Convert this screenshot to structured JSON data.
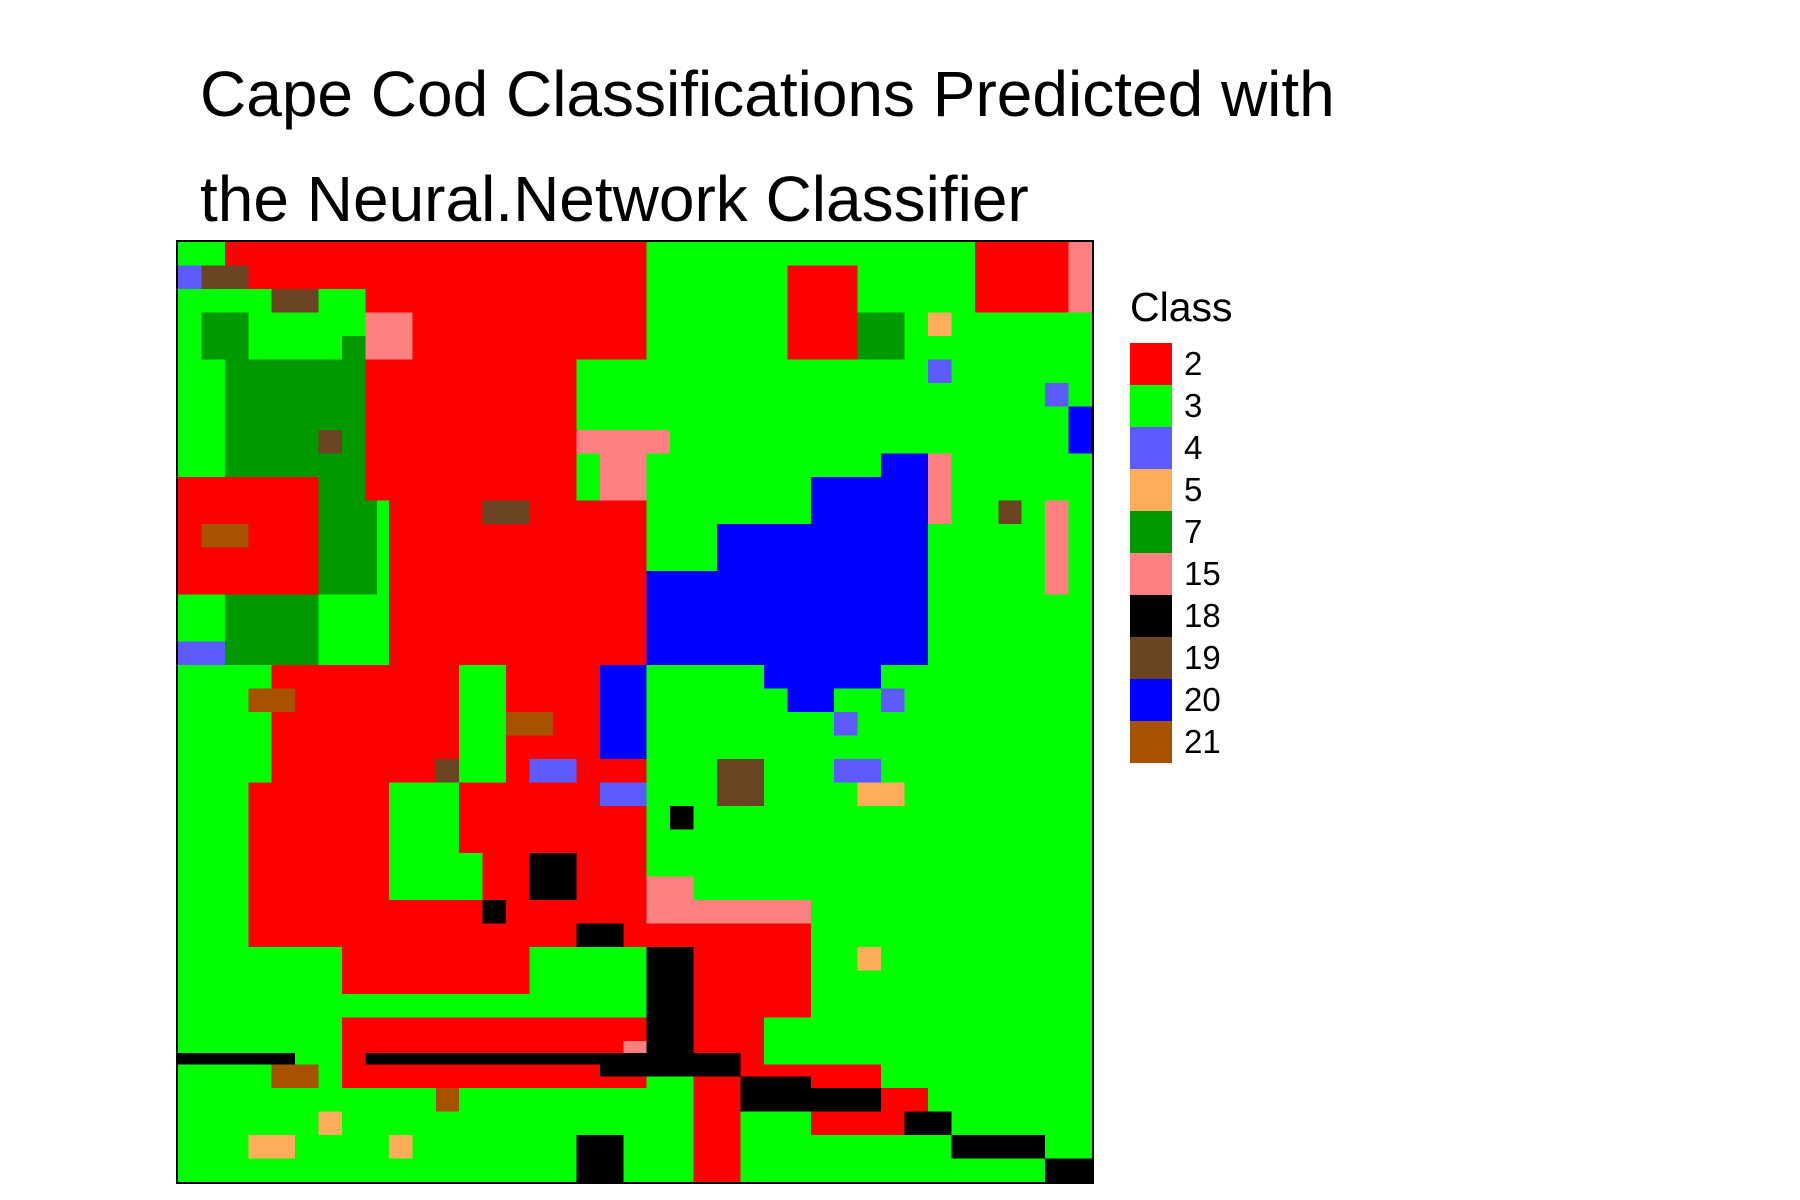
{
  "chart_data": {
    "type": "heatmap",
    "title_lines": [
      "Cape Cod Classifications Predicted with",
      "the Neural.Network Classifier"
    ],
    "legend": {
      "title": "Class",
      "placement": "right",
      "entries": [
        {
          "label": "2",
          "color": "#ff0000"
        },
        {
          "label": "3",
          "color": "#00ff00"
        },
        {
          "label": "4",
          "color": "#5b5bff"
        },
        {
          "label": "5",
          "color": "#ffad5b"
        },
        {
          "label": "7",
          "color": "#009900"
        },
        {
          "label": "15",
          "color": "#ff8080"
        },
        {
          "label": "18",
          "color": "#000000"
        },
        {
          "label": "19",
          "color": "#6b4423"
        },
        {
          "label": "20",
          "color": "#0000ff"
        },
        {
          "label": "21",
          "color": "#a65200"
        }
      ]
    },
    "grid": {
      "cols": 78,
      "rows": 80,
      "background_class": "3",
      "regions": [
        {
          "class": "7",
          "cells": [
            [
              4,
              10,
              17,
              30
            ],
            [
              2,
              6,
              6,
              10
            ],
            [
              20,
              8,
              30,
              14
            ],
            [
              4,
              30,
              12,
              36
            ],
            [
              58,
              6,
              62,
              10
            ],
            [
              14,
              8,
              20,
              12
            ]
          ]
        },
        {
          "class": "2",
          "cells": [
            [
              4,
              0,
              40,
              4
            ],
            [
              16,
              4,
              40,
              10
            ],
            [
              16,
              10,
              34,
              22
            ],
            [
              0,
              20,
              12,
              30
            ],
            [
              18,
              22,
              40,
              36
            ],
            [
              28,
              36,
              40,
              46
            ],
            [
              8,
              36,
              24,
              46
            ],
            [
              6,
              46,
              18,
              60
            ],
            [
              14,
              56,
              30,
              64
            ],
            [
              24,
              46,
              40,
              52
            ],
            [
              26,
              52,
              40,
              60
            ],
            [
              40,
              58,
              44,
              68
            ],
            [
              44,
              56,
              50,
              72
            ],
            [
              50,
              56,
              54,
              66
            ],
            [
              14,
              66,
              40,
              72
            ],
            [
              44,
              70,
              48,
              80
            ],
            [
              48,
              70,
              60,
              74
            ],
            [
              54,
              72,
              64,
              76
            ],
            [
              68,
              0,
              76,
              6
            ],
            [
              52,
              2,
              58,
              10
            ],
            [
              36,
              26,
              40,
              36
            ],
            [
              32,
              40,
              40,
              48
            ]
          ]
        },
        {
          "class": "15",
          "cells": [
            [
              16,
              6,
              20,
              10
            ],
            [
              34,
              16,
              42,
              18
            ],
            [
              36,
              18,
              40,
              22
            ],
            [
              40,
              54,
              44,
              58
            ],
            [
              44,
              56,
              54,
              58
            ],
            [
              76,
              0,
              78,
              6
            ],
            [
              64,
              18,
              66,
              24
            ],
            [
              38,
              68,
              42,
              70
            ],
            [
              74,
              22,
              76,
              30
            ]
          ]
        },
        {
          "class": "20",
          "cells": [
            [
              40,
              28,
              64,
              36
            ],
            [
              46,
              24,
              64,
              28
            ],
            [
              54,
              20,
              64,
              24
            ],
            [
              60,
              18,
              64,
              20
            ],
            [
              50,
              36,
              60,
              38
            ],
            [
              52,
              38,
              56,
              40
            ],
            [
              36,
              36,
              40,
              44
            ],
            [
              76,
              14,
              78,
              18
            ]
          ]
        },
        {
          "class": "18",
          "cells": [
            [
              0,
              69,
              10,
              70
            ],
            [
              16,
              69,
              36,
              70
            ],
            [
              36,
              69,
              48,
              71
            ],
            [
              40,
              60,
              44,
              70
            ],
            [
              48,
              71,
              54,
              72
            ],
            [
              48,
              72,
              60,
              74
            ],
            [
              62,
              74,
              66,
              76
            ],
            [
              66,
              76,
              74,
              78
            ],
            [
              74,
              78,
              78,
              80
            ],
            [
              34,
              76,
              38,
              80
            ],
            [
              34,
              58,
              38,
              60
            ],
            [
              30,
              52,
              34,
              56
            ],
            [
              42,
              48,
              44,
              50
            ],
            [
              26,
              56,
              28,
              58
            ]
          ]
        },
        {
          "class": "19",
          "cells": [
            [
              2,
              2,
              6,
              4
            ],
            [
              8,
              4,
              12,
              6
            ],
            [
              12,
              16,
              14,
              18
            ],
            [
              26,
              22,
              30,
              24
            ],
            [
              22,
              44,
              24,
              46
            ],
            [
              46,
              44,
              50,
              48
            ],
            [
              70,
              22,
              72,
              24
            ]
          ]
        },
        {
          "class": "21",
          "cells": [
            [
              2,
              24,
              6,
              26
            ],
            [
              6,
              38,
              10,
              40
            ],
            [
              28,
              40,
              32,
              42
            ],
            [
              8,
              70,
              12,
              72
            ],
            [
              22,
              72,
              24,
              74
            ]
          ]
        },
        {
          "class": "5",
          "cells": [
            [
              64,
              6,
              66,
              8
            ],
            [
              58,
              46,
              62,
              48
            ],
            [
              58,
              60,
              60,
              62
            ],
            [
              6,
              76,
              10,
              78
            ],
            [
              18,
              76,
              20,
              78
            ],
            [
              12,
              74,
              14,
              76
            ]
          ]
        },
        {
          "class": "4",
          "cells": [
            [
              0,
              2,
              2,
              4
            ],
            [
              0,
              34,
              4,
              36
            ],
            [
              30,
              44,
              34,
              46
            ],
            [
              36,
              46,
              40,
              48
            ],
            [
              56,
              44,
              60,
              46
            ],
            [
              64,
              10,
              66,
              12
            ],
            [
              74,
              12,
              76,
              14
            ],
            [
              56,
              40,
              58,
              42
            ],
            [
              60,
              38,
              62,
              40
            ]
          ]
        }
      ]
    }
  }
}
